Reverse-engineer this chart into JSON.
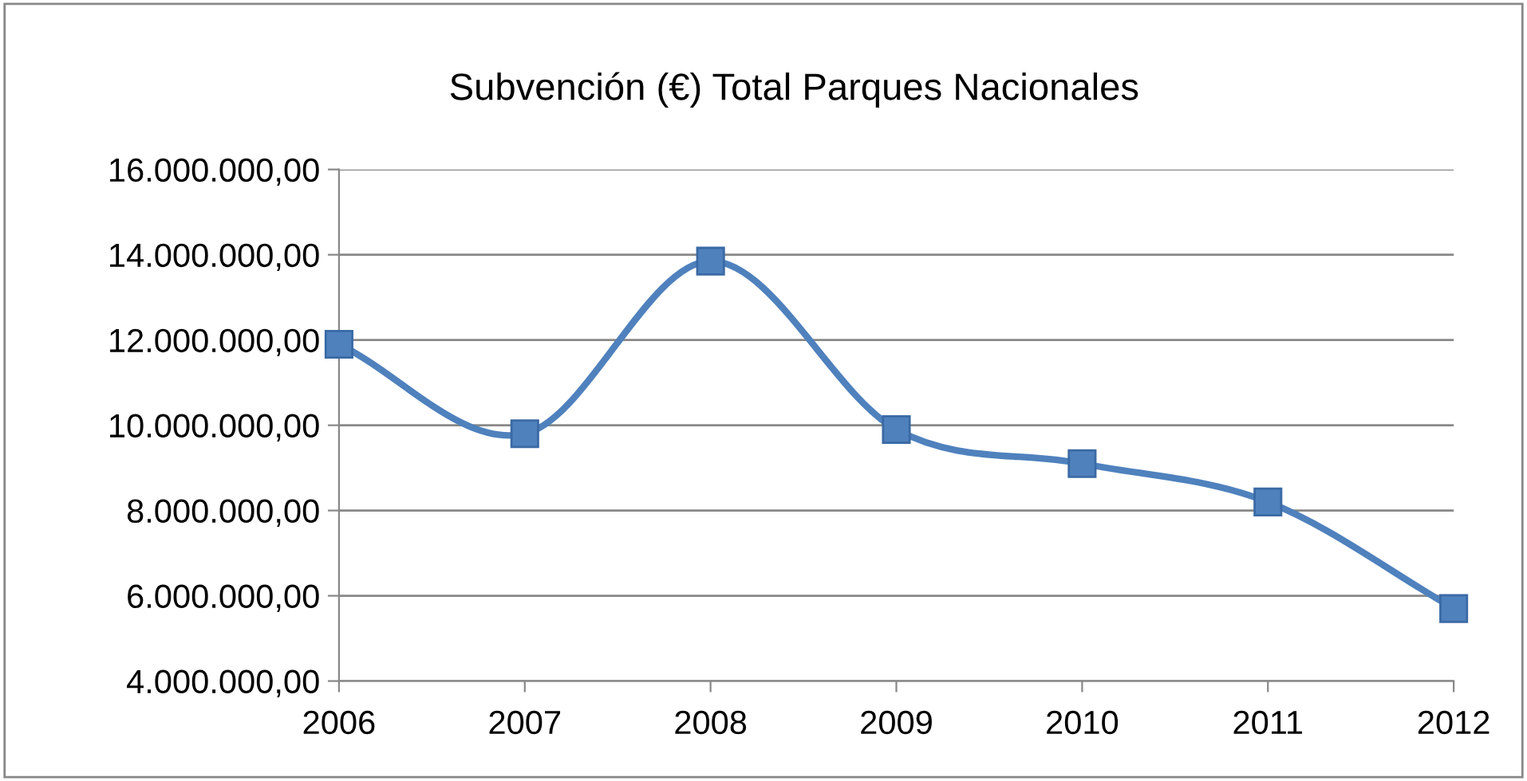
{
  "chart_data": {
    "type": "line",
    "title": "Subvención (€) Total Parques Nacionales",
    "categories": [
      "2006",
      "2007",
      "2008",
      "2009",
      "2010",
      "2011",
      "2012"
    ],
    "series": [
      {
        "color": "#4f81bd",
        "values": [
          11900000,
          9800000,
          13850000,
          9900000,
          9100000,
          8200000,
          5700000
        ]
      }
    ],
    "ylim": [
      4000000,
      16000000
    ],
    "yticks": [
      {
        "value": 4000000,
        "label": "4.000.000,00"
      },
      {
        "value": 6000000,
        "label": "6.000.000,00"
      },
      {
        "value": 8000000,
        "label": "8.000.000,00"
      },
      {
        "value": 10000000,
        "label": "10.000.000,00"
      },
      {
        "value": 12000000,
        "label": "12.000.000,00"
      },
      {
        "value": 14000000,
        "label": "14.000.000,00"
      },
      {
        "value": 16000000,
        "label": "16.000.000,00"
      }
    ],
    "grid": "y",
    "marker": "square",
    "line_style": "solid"
  }
}
